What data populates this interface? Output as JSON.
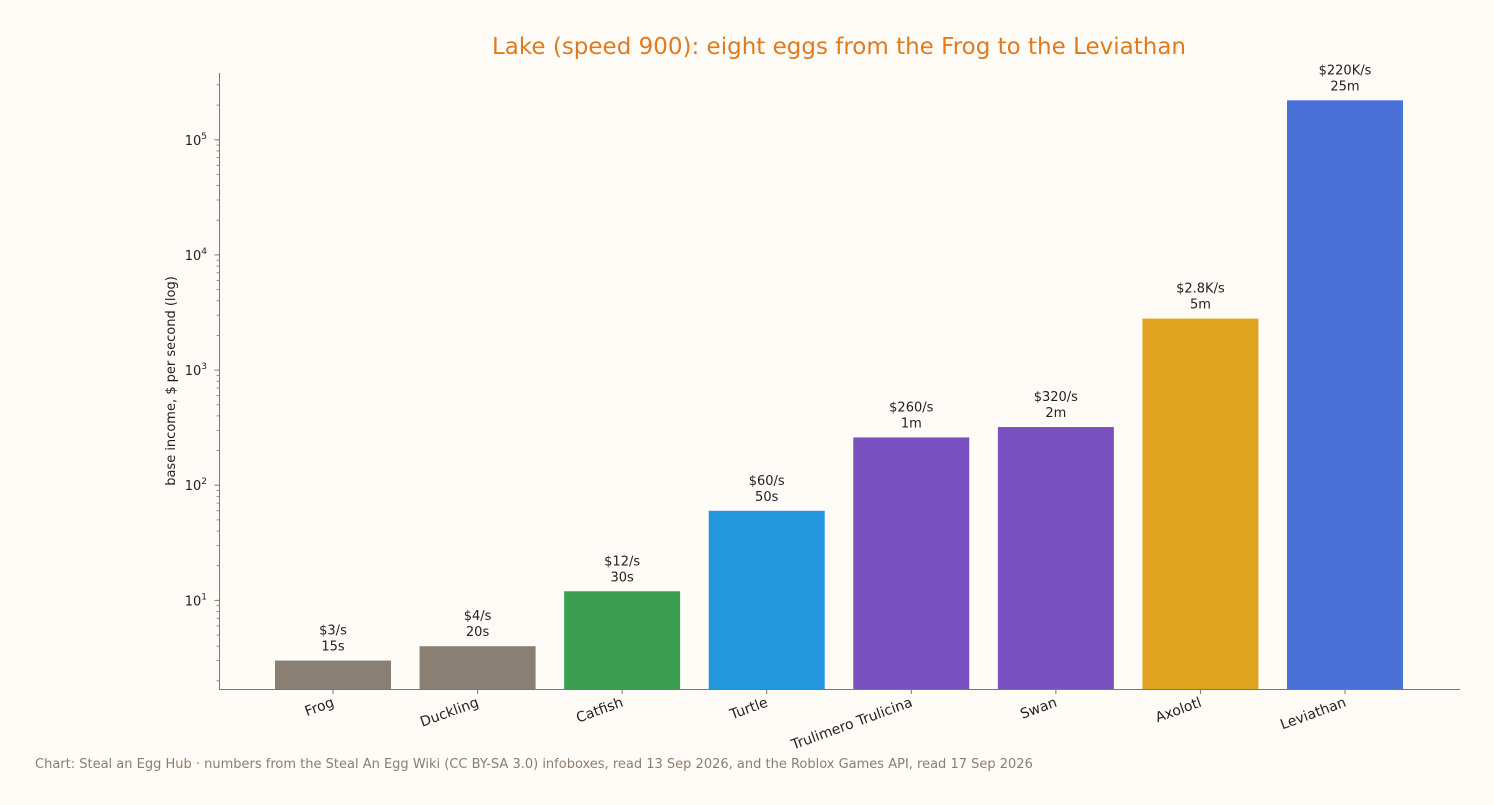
{
  "colors": {
    "background": "#fffcf7",
    "title": "#e07a1f",
    "caption": "#8a7d70",
    "axis": "#777777"
  },
  "chart_data": {
    "type": "bar",
    "title": "Lake (speed 900): eight eggs from the Frog to the Leviathan",
    "xlabel": "",
    "ylabel": "base income, $ per second (log)",
    "yscale": "log",
    "ylim": [
      1.7,
      380000
    ],
    "yticks": [
      {
        "base": "10",
        "exp": "1",
        "value": 10
      },
      {
        "base": "10",
        "exp": "2",
        "value": 100
      },
      {
        "base": "10",
        "exp": "3",
        "value": 1000
      },
      {
        "base": "10",
        "exp": "4",
        "value": 10000
      },
      {
        "base": "10",
        "exp": "5",
        "value": 100000
      }
    ],
    "grid": false,
    "legend": "none",
    "categories": [
      "Frog",
      "Duckling",
      "Catfish",
      "Turtle",
      "Trulimero Trulicina",
      "Swan",
      "Axolotl",
      "Leviathan"
    ],
    "values": [
      3,
      4,
      12,
      60,
      260,
      320,
      2800,
      220000
    ],
    "income_labels": [
      "$3/s",
      "$4/s",
      "$12/s",
      "$60/s",
      "$260/s",
      "$320/s",
      "$2.8K/s",
      "$220K/s"
    ],
    "time_labels": [
      "15s",
      "20s",
      "30s",
      "50s",
      "1m",
      "2m",
      "5m",
      "25m"
    ],
    "bar_colors": [
      "#8a7f73",
      "#8a7f73",
      "#3c9e50",
      "#2496de",
      "#7a51c0",
      "#7a51c0",
      "#e0a320",
      "#4a71d8"
    ]
  },
  "caption": "Chart: Steal an Egg Hub · numbers from the Steal An Egg Wiki (CC BY-SA 3.0) infoboxes, read 13 Sep 2026, and the Roblox Games API, read 17 Sep 2026"
}
